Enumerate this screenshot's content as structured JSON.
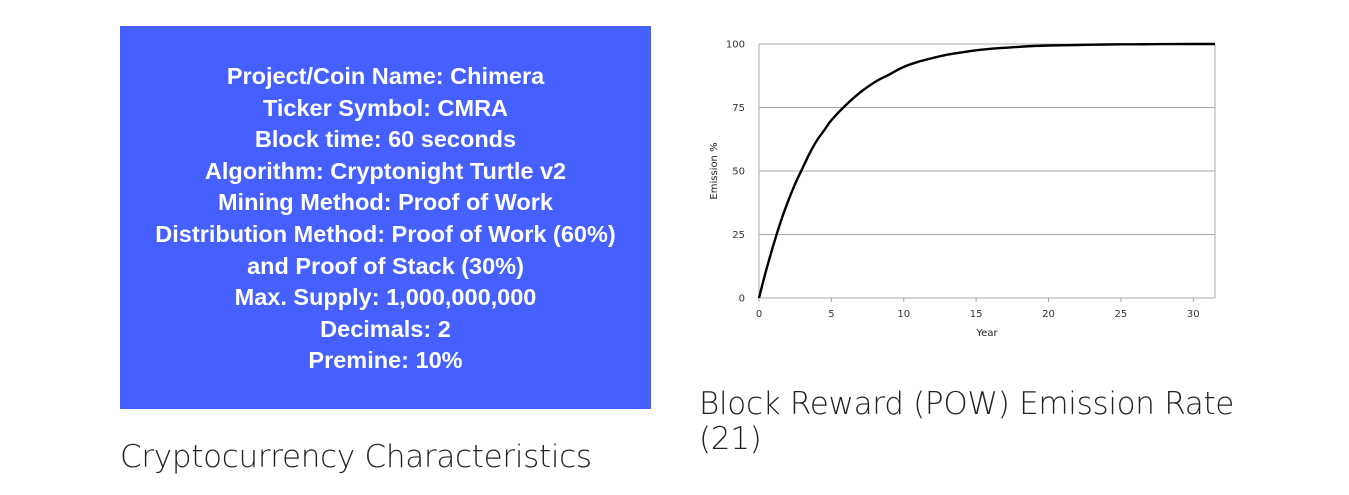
{
  "info_card": {
    "lines": [
      "Project/Coin Name: Chimera",
      "Ticker Symbol: CMRA",
      "Block time: 60 seconds",
      "Algorithm: Cryptonight Turtle v2",
      "Mining Method: Proof of Work",
      "Distribution Method: Proof of Work (60%)",
      "and Proof of Stack (30%)",
      "Max. Supply: 1,000,000,000",
      "Decimals: 2",
      "Premine: 10%"
    ],
    "background_color": "#4560ff",
    "text_color": "#ffffff"
  },
  "captions": {
    "left": "Cryptocurrency Characteristics",
    "right": "Block Reward (POW) Emission Rate (21)"
  },
  "chart_data": {
    "type": "line",
    "title": "",
    "xlabel": "Year",
    "ylabel": "Emission %",
    "xlim": [
      0,
      31.5
    ],
    "ylim": [
      0,
      100
    ],
    "x_ticks": [
      0,
      5,
      10,
      15,
      20,
      25,
      30
    ],
    "y_ticks": [
      0,
      25,
      50,
      75,
      100
    ],
    "grid": "horizontal",
    "series": [
      {
        "x": [
          0,
          0.5,
          1,
          1.5,
          2,
          2.5,
          3,
          3.5,
          4,
          4.5,
          5,
          6,
          7,
          8,
          9,
          10,
          11,
          12,
          13,
          14,
          15,
          16,
          17,
          18,
          19,
          20,
          22,
          24,
          26,
          28,
          30,
          31.5
        ],
        "values": [
          0,
          11,
          21,
          30,
          38,
          45,
          51,
          57,
          62,
          66,
          70,
          76,
          81,
          85,
          88,
          91,
          93,
          94.5,
          95.8,
          96.7,
          97.5,
          98.1,
          98.5,
          98.9,
          99.2,
          99.4,
          99.6,
          99.8,
          99.9,
          99.95,
          100,
          100
        ],
        "color": "#000000"
      }
    ]
  }
}
